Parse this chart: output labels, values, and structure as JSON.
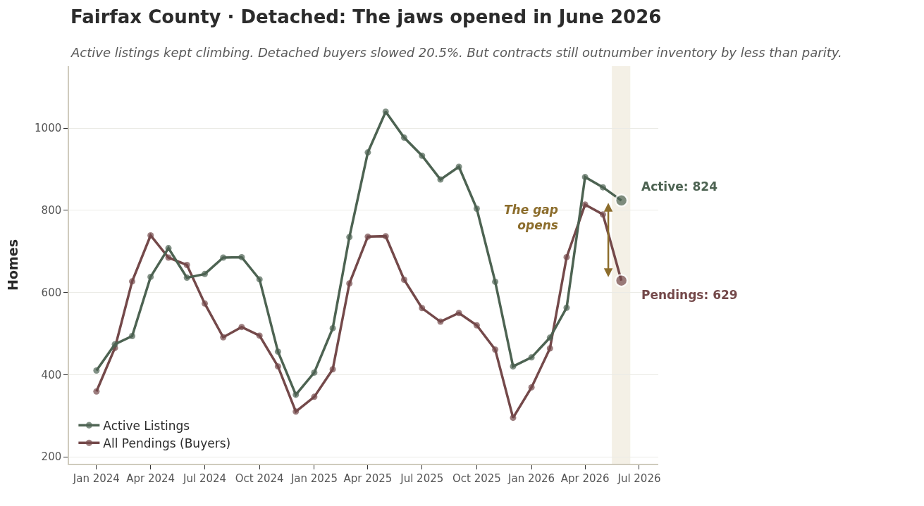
{
  "chart_data": {
    "type": "line",
    "title": "Fairfax County · Detached: The jaws opened in June 2026",
    "subtitle": "Active listings kept climbing. Detached buyers slowed 20.5%. But contracts still outnumber inventory by less than parity.",
    "ylabel": "Homes",
    "x": [
      "2024-01",
      "2024-02",
      "2024-03",
      "2024-04",
      "2024-05",
      "2024-06",
      "2024-07",
      "2024-08",
      "2024-09",
      "2024-10",
      "2024-11",
      "2024-12",
      "2025-01",
      "2025-02",
      "2025-03",
      "2025-04",
      "2025-05",
      "2025-06",
      "2025-07",
      "2025-08",
      "2025-09",
      "2025-10",
      "2025-11",
      "2025-12",
      "2026-01",
      "2026-02",
      "2026-03",
      "2026-04",
      "2026-05",
      "2026-06"
    ],
    "series": [
      {
        "name": "Active Listings",
        "color": "#4d6352",
        "values": [
          410,
          474,
          494,
          638,
          708,
          636,
          645,
          685,
          686,
          632,
          456,
          351,
          405,
          513,
          735,
          941,
          1040,
          977,
          933,
          875,
          906,
          804,
          626,
          420,
          442,
          490,
          563,
          881,
          856,
          824
        ],
        "value_labels": [
          null,
          null,
          null,
          null,
          null,
          null,
          null,
          null,
          null,
          null,
          null,
          null,
          null,
          null,
          null,
          null,
          null,
          null,
          null,
          null,
          null,
          null,
          null,
          null,
          null,
          null,
          null,
          null,
          null,
          "Active: 824"
        ]
      },
      {
        "name": "All Pendings (Buyers)",
        "color": "#74494a",
        "values": [
          359,
          465,
          627,
          739,
          685,
          667,
          573,
          491,
          516,
          495,
          420,
          310,
          346,
          413,
          622,
          736,
          737,
          631,
          562,
          529,
          550,
          520,
          461,
          295,
          369,
          464,
          686,
          814,
          790,
          629
        ],
        "value_labels": [
          null,
          null,
          null,
          null,
          null,
          null,
          null,
          null,
          null,
          null,
          null,
          null,
          null,
          null,
          null,
          null,
          null,
          null,
          null,
          null,
          null,
          null,
          null,
          null,
          null,
          null,
          null,
          null,
          null,
          "Pendings: 629"
        ]
      }
    ],
    "annotations": [
      "The gap\nopens"
    ],
    "bands": [
      {
        "axis": "x",
        "from": "2026-05-16",
        "to": "2026-06-16",
        "color": "#f4f0e6"
      }
    ],
    "xlim": [
      "2023-11-16",
      "2026-08-02"
    ],
    "xticks": [
      {
        "value": "2024-01",
        "label": "Jan 2024"
      },
      {
        "value": "2024-04",
        "label": "Apr 2024"
      },
      {
        "value": "2024-07",
        "label": "Jul 2024"
      },
      {
        "value": "2024-10",
        "label": "Oct 2024"
      },
      {
        "value": "2025-01",
        "label": "Jan 2025"
      },
      {
        "value": "2025-04",
        "label": "Apr 2025"
      },
      {
        "value": "2025-07",
        "label": "Jul 2025"
      },
      {
        "value": "2025-10",
        "label": "Oct 2025"
      },
      {
        "value": "2026-01",
        "label": "Jan 2026"
      },
      {
        "value": "2026-04",
        "label": "Apr 2026"
      },
      {
        "value": "2026-07",
        "label": "Jul 2026"
      }
    ],
    "ylim": [
      183,
      1151
    ],
    "yticks": [
      200,
      400,
      600,
      800,
      1000
    ],
    "grid": "y",
    "legend": "bottom left",
    "marker": "circle",
    "line_style": "solid"
  }
}
